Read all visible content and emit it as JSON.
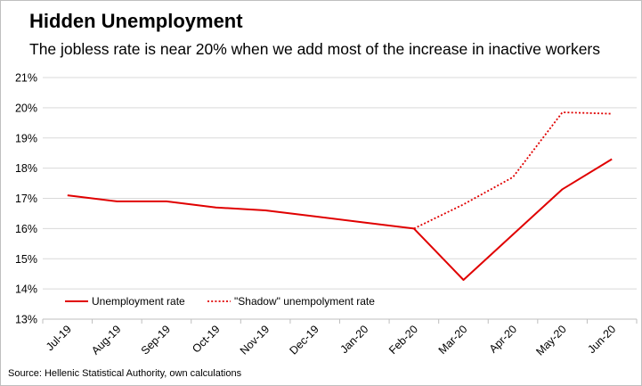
{
  "header": {
    "title": "Hidden Unemployment",
    "subtitle": "The jobless rate is near 20% when we add most of the increase in inactive workers"
  },
  "footer": {
    "source": "Source: Hellenic Statistical Authority, own calculations"
  },
  "colors": {
    "series": "#e00000",
    "grid": "#d9d9d9",
    "axis": "#bfbfbf"
  },
  "chart_data": {
    "type": "line",
    "title": "Hidden Unemployment",
    "subtitle": "The jobless rate is near 20% when we add most of the increase in inactive workers",
    "xlabel": "",
    "ylabel": "",
    "categories": [
      "Jul-19",
      "Aug-19",
      "Sep-19",
      "Oct-19",
      "Nov-19",
      "Dec-19",
      "Jan-20",
      "Feb-20",
      "Mar-20",
      "Apr-20",
      "May-20",
      "Jun-20"
    ],
    "ylim": [
      13,
      21
    ],
    "yticks": [
      13,
      14,
      15,
      16,
      17,
      18,
      19,
      20,
      21
    ],
    "ytick_labels": [
      "13%",
      "14%",
      "15%",
      "16%",
      "17%",
      "18%",
      "19%",
      "20%",
      "21%"
    ],
    "grid": true,
    "legend_position": "bottom-left",
    "series": [
      {
        "name": "Unemployment rate",
        "style": "solid",
        "values": [
          17.1,
          16.9,
          16.9,
          16.7,
          16.6,
          16.4,
          16.2,
          16.0,
          14.3,
          15.8,
          17.3,
          18.3
        ]
      },
      {
        "name": "\"Shadow\" unempolyment rate",
        "style": "dotted",
        "values": [
          null,
          null,
          null,
          null,
          null,
          null,
          null,
          16.0,
          16.8,
          17.7,
          19.85,
          19.8
        ]
      }
    ]
  }
}
